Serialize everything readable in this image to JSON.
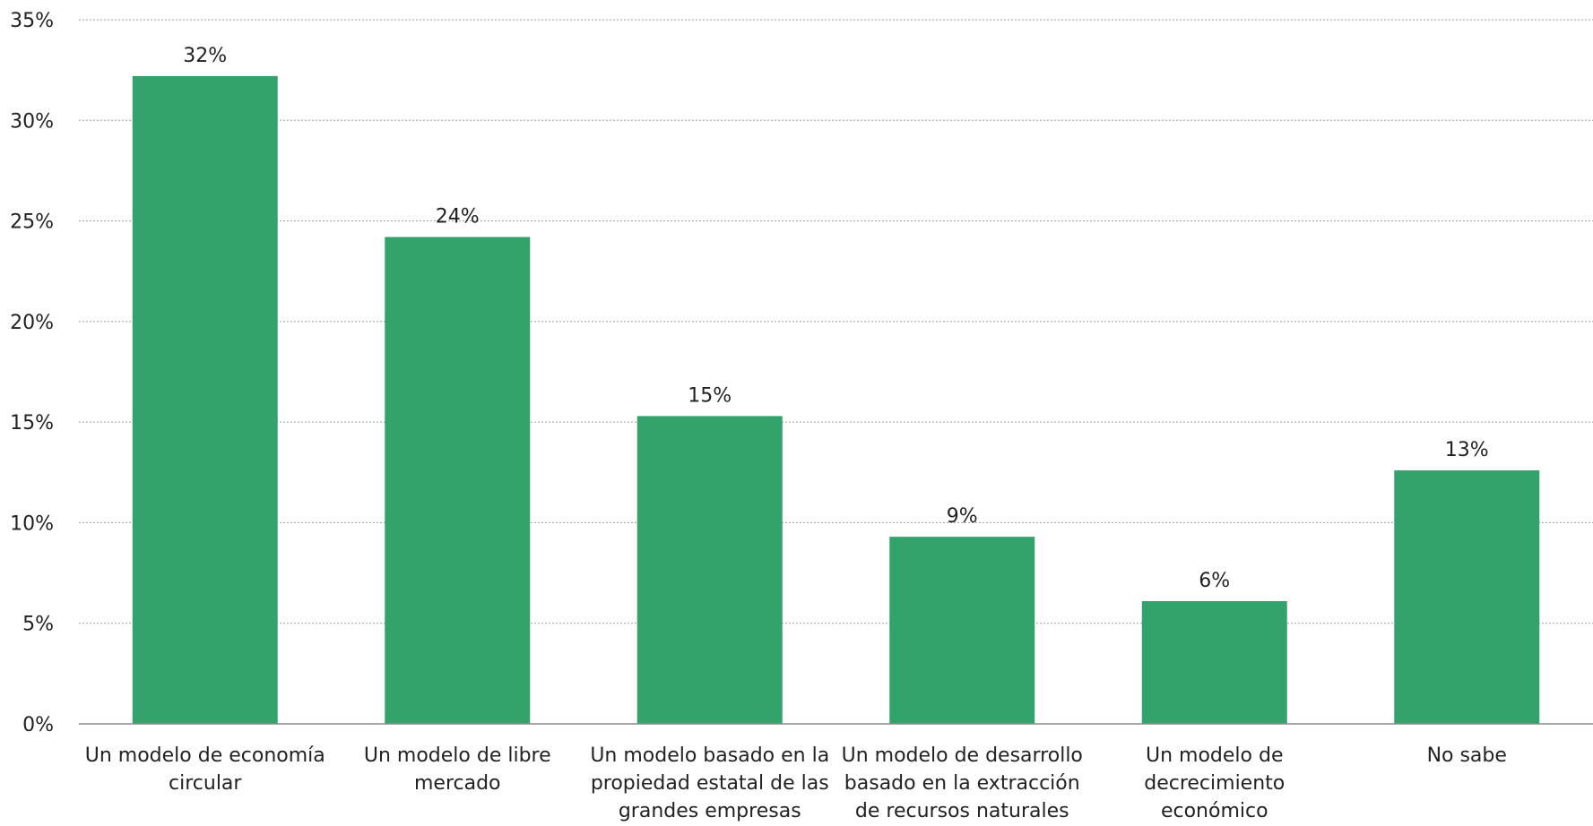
{
  "chart_data": {
    "type": "bar",
    "title": "",
    "xlabel": "",
    "ylabel": "",
    "categories": [
      [
        "Un modelo de economía",
        "circular"
      ],
      [
        "Un modelo de libre",
        "mercado"
      ],
      [
        "Un modelo basado en la",
        "propiedad estatal de las",
        "grandes empresas"
      ],
      [
        "Un modelo de desarrollo",
        "basado en la extracción",
        "de recursos naturales"
      ],
      [
        "Un modelo de",
        "decrecimiento",
        "económico"
      ],
      [
        "No sabe"
      ]
    ],
    "values": [
      32.2,
      24.2,
      15.3,
      9.3,
      6.1,
      12.6
    ],
    "data_labels": [
      "32%",
      "24%",
      "15%",
      "9%",
      "6%",
      "13%"
    ],
    "ylim": [
      0,
      35
    ],
    "yticks": [
      0,
      5,
      10,
      15,
      20,
      25,
      30,
      35
    ],
    "ytick_labels": [
      "0%",
      "5%",
      "10%",
      "15%",
      "20%",
      "25%",
      "30%",
      "35%"
    ],
    "grid": true,
    "legend": "none",
    "bar_color": "#34a36b"
  }
}
